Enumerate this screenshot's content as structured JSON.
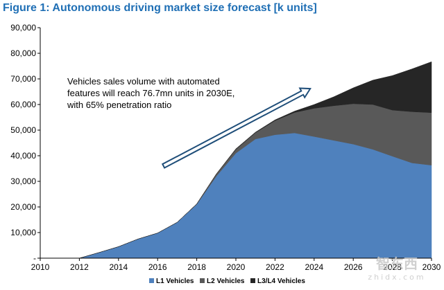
{
  "title": "Figure 1: Autonomous driving market size forecast [k units]",
  "watermark": {
    "logo": "智东西",
    "url": "zhidx.com"
  },
  "chart_data": {
    "type": "area",
    "stacked": true,
    "title": "Figure 1: Autonomous driving market size forecast [k units]",
    "x": [
      2010,
      2011,
      2012,
      2013,
      2014,
      2015,
      2016,
      2017,
      2018,
      2019,
      2020,
      2021,
      2022,
      2023,
      2024,
      2025,
      2026,
      2027,
      2028,
      2029,
      2030
    ],
    "xticks": [
      "2010",
      "2012",
      "2014",
      "2016",
      "2018",
      "2020",
      "2022",
      "2024",
      "2026",
      "2028",
      "2030"
    ],
    "yticks": [
      "-",
      "10,000",
      "20,000",
      "30,000",
      "40,000",
      "50,000",
      "60,000",
      "70,000",
      "80,000",
      "90,000"
    ],
    "xlim": [
      2010,
      2030
    ],
    "ylim": [
      0,
      90000
    ],
    "series": [
      {
        "name": "L1 Vehicles",
        "color": "#4f81bd",
        "values": [
          0,
          0,
          0,
          2200,
          4500,
          7500,
          9800,
          14000,
          21000,
          32000,
          41000,
          46500,
          48200,
          48900,
          47500,
          46000,
          44500,
          42500,
          39800,
          37200,
          36300
        ]
      },
      {
        "name": "L2 Vehicles",
        "color": "#595959",
        "values": [
          0,
          0,
          0,
          0,
          0,
          0,
          0,
          0,
          200,
          800,
          1500,
          2500,
          5500,
          8000,
          11000,
          13500,
          15800,
          17500,
          18000,
          20000,
          20500
        ]
      },
      {
        "name": "L3/L4 Vehicles",
        "color": "#262626",
        "values": [
          0,
          0,
          0,
          0,
          0,
          0,
          0,
          0,
          0,
          100,
          200,
          200,
          300,
          500,
          1500,
          3500,
          6200,
          9500,
          13500,
          16700,
          19900
        ]
      }
    ],
    "annotation": {
      "lines": [
        "Vehicles sales volume with automated",
        "features will reach 76.7mn units in 2030E,",
        "with 65% penetration ratio"
      ],
      "arrow": {
        "from": [
          2016.3,
          36000
        ],
        "to": [
          2023.8,
          66200
        ]
      }
    },
    "legend_position": "bottom-center"
  }
}
